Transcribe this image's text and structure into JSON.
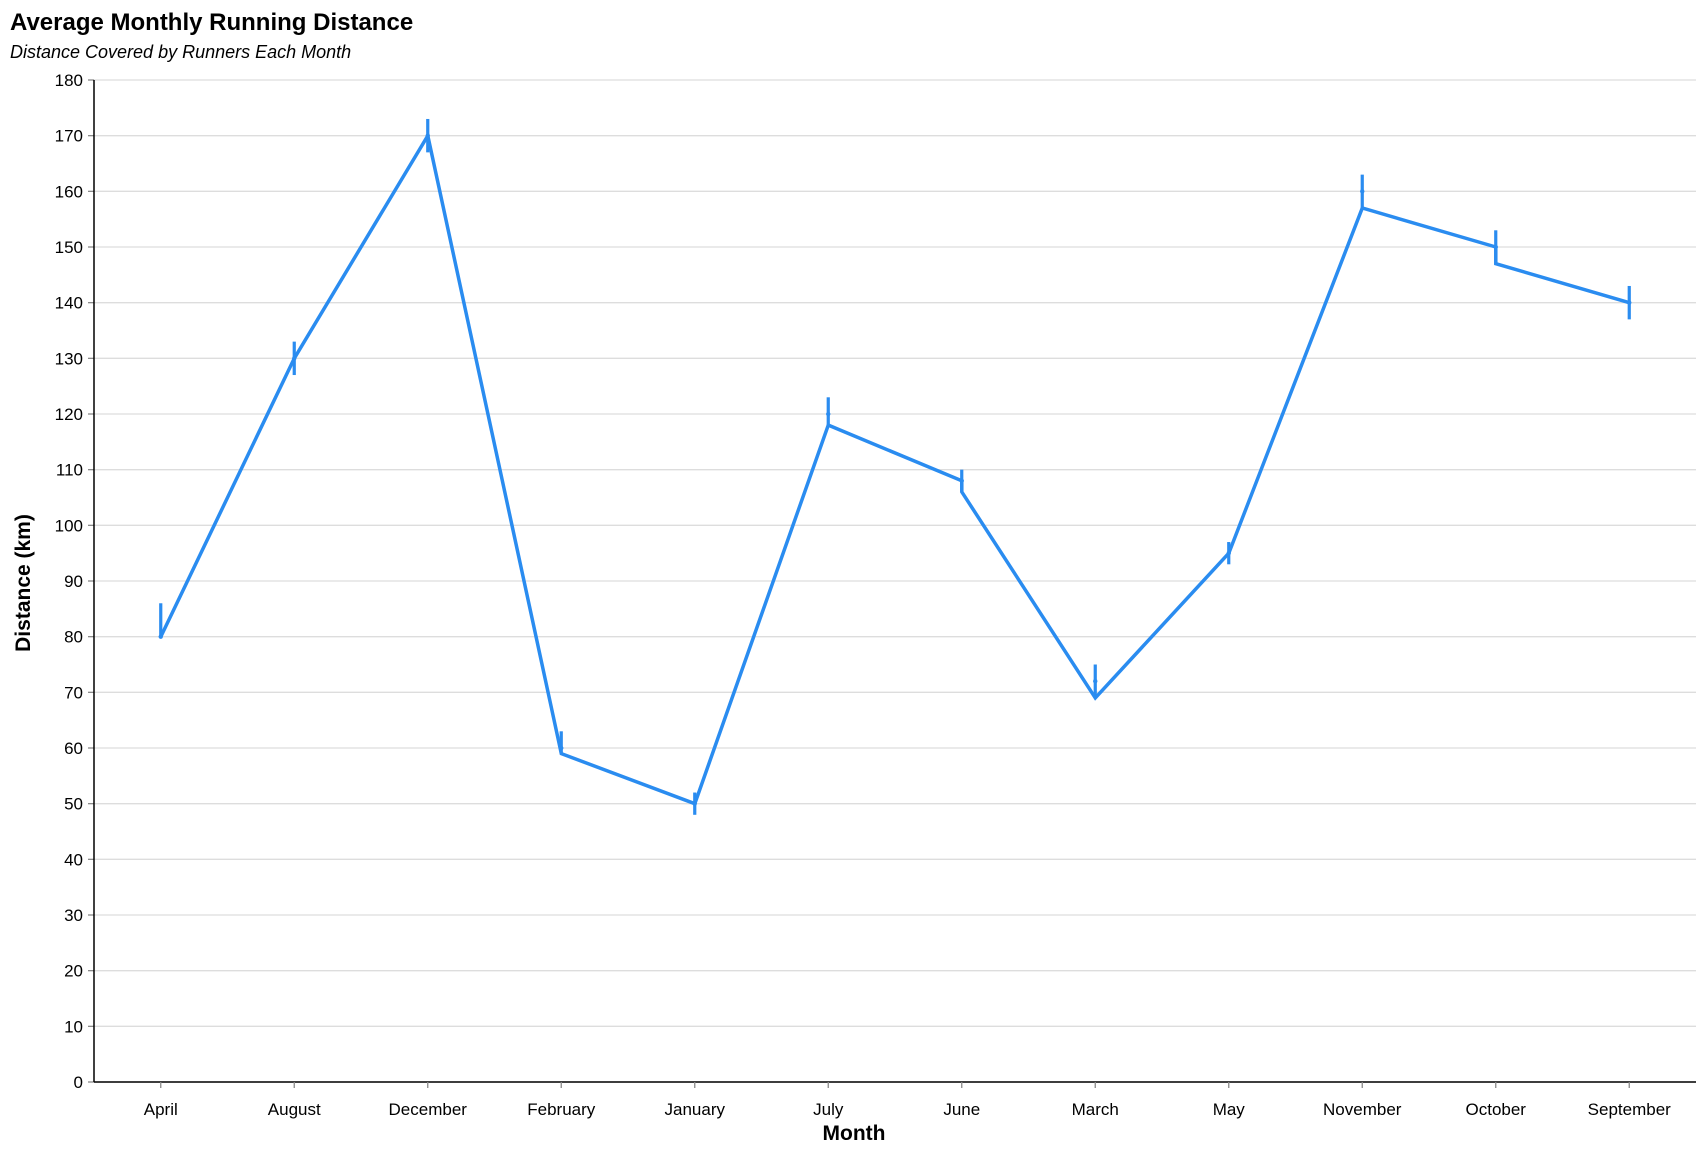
{
  "chart_data": {
    "type": "line",
    "title": "Average Monthly Running Distance",
    "subtitle": "Distance Covered by Runners Each Month",
    "xlabel": "Month",
    "ylabel": "Distance (km)",
    "ylim": [
      0,
      180
    ],
    "yticks": [
      0,
      10,
      20,
      30,
      40,
      50,
      60,
      70,
      80,
      90,
      100,
      110,
      120,
      130,
      140,
      150,
      160,
      170,
      180
    ],
    "grid": true,
    "categories": [
      "April",
      "August",
      "December",
      "February",
      "January",
      "July",
      "June",
      "March",
      "May",
      "November",
      "October",
      "September"
    ],
    "series": [
      {
        "values": [
          80,
          130,
          170,
          60,
          50,
          120,
          108,
          72,
          95,
          160,
          150,
          140
        ],
        "error_low": [
          80,
          127,
          167,
          59,
          48,
          118,
          106,
          69,
          93,
          157,
          147,
          137
        ],
        "error_high": [
          86,
          133,
          173,
          63,
          52,
          123,
          110,
          75,
          97,
          163,
          153,
          143
        ],
        "color": "#2a8cf0"
      }
    ],
    "line_path_values": [
      80,
      130,
      170,
      59,
      50,
      118,
      108,
      106,
      69,
      95,
      157,
      150,
      147,
      140
    ]
  }
}
